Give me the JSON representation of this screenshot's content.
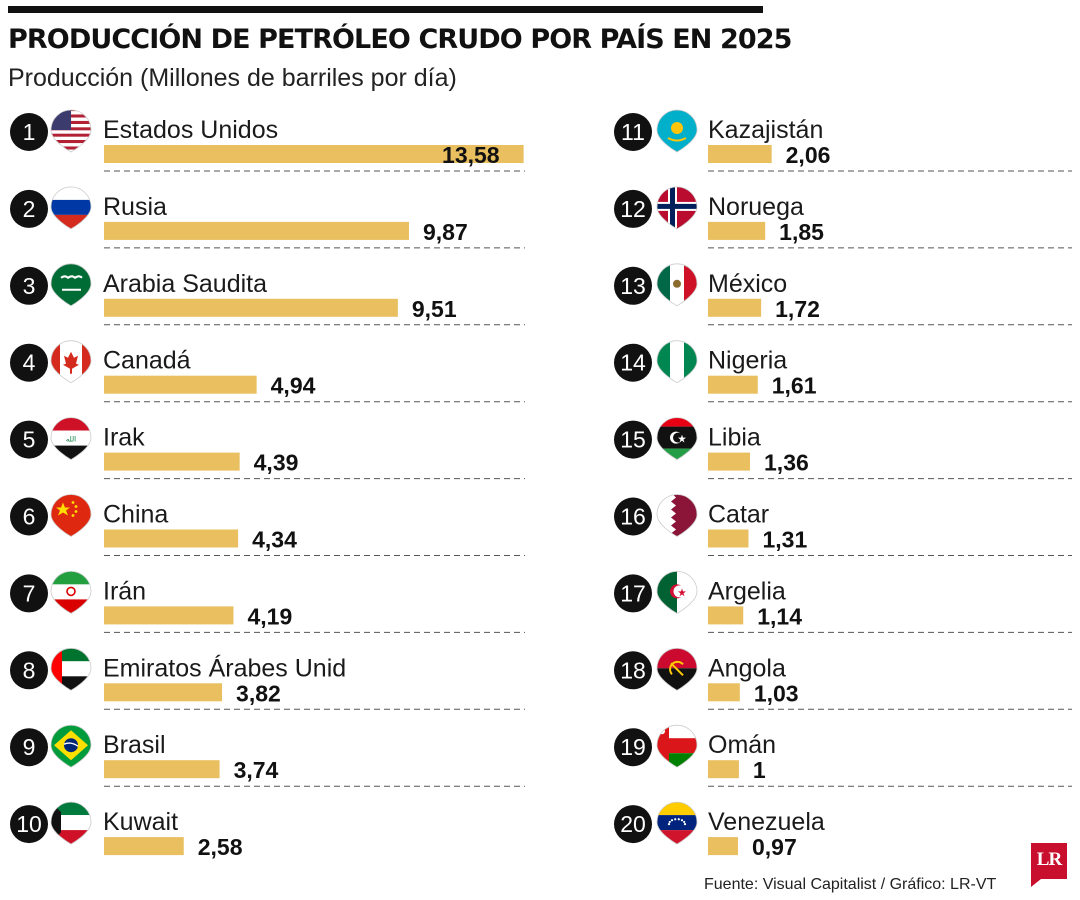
{
  "title": "PRODUCCIÓN DE PETRÓLEO CRUDO POR PAÍS EN 2025",
  "subtitle": "Producción (Millones de barriles por día)",
  "source": "Fuente: Visual Capitalist / Gráfico: LR-VT",
  "logo": "LR",
  "colors": {
    "bar": "#e9bf5f",
    "badge": "#111111",
    "rule": "#111111",
    "logo": "#c8102e"
  },
  "chart_data": {
    "type": "bar",
    "orientation": "horizontal",
    "title": "PRODUCCIÓN DE PETRÓLEO CRUDO POR PAÍS EN 2025",
    "subtitle": "Producción (Millones de barriles por día)",
    "unit": "Millones de barriles por día",
    "grid": false,
    "categories": [
      "Estados Unidos",
      "Rusia",
      "Arabia Saudita",
      "Canadá",
      "Irak",
      "China",
      "Irán",
      "Emiratos Árabes Unid",
      "Brasil",
      "Kuwait",
      "Kazajistán",
      "Noruega",
      "México",
      "Nigeria",
      "Libia",
      "Catar",
      "Argelia",
      "Angola",
      "Omán",
      "Venezuela"
    ],
    "ranks": [
      "1",
      "2",
      "3",
      "4",
      "5",
      "6",
      "7",
      "8",
      "9",
      "10",
      "11",
      "12",
      "13",
      "14",
      "15",
      "16",
      "17",
      "18",
      "19",
      "20"
    ],
    "values": [
      13.58,
      9.87,
      9.51,
      4.94,
      4.39,
      4.34,
      4.19,
      3.82,
      3.74,
      2.58,
      2.06,
      1.85,
      1.72,
      1.61,
      1.36,
      1.31,
      1.14,
      1.03,
      1,
      0.97
    ],
    "value_labels": [
      "13,58",
      "9,87",
      "9,51",
      "4,94",
      "4,39",
      "4,34",
      "4,19",
      "3,82",
      "3,74",
      "2,58",
      "2,06",
      "1,85",
      "1,72",
      "1,61",
      "1,36",
      "1,31",
      "1,14",
      "1,03",
      "1",
      "0,97"
    ],
    "flag_icons": [
      "flag-usa-icon",
      "flag-russia-icon",
      "flag-saudi-arabia-icon",
      "flag-canada-icon",
      "flag-iraq-icon",
      "flag-china-icon",
      "flag-iran-icon",
      "flag-uae-icon",
      "flag-brazil-icon",
      "flag-kuwait-icon",
      "flag-kazakhstan-icon",
      "flag-norway-icon",
      "flag-mexico-icon",
      "flag-nigeria-icon",
      "flag-libya-icon",
      "flag-qatar-icon",
      "flag-algeria-icon",
      "flag-angola-icon",
      "flag-oman-icon",
      "flag-venezuela-icon"
    ]
  }
}
